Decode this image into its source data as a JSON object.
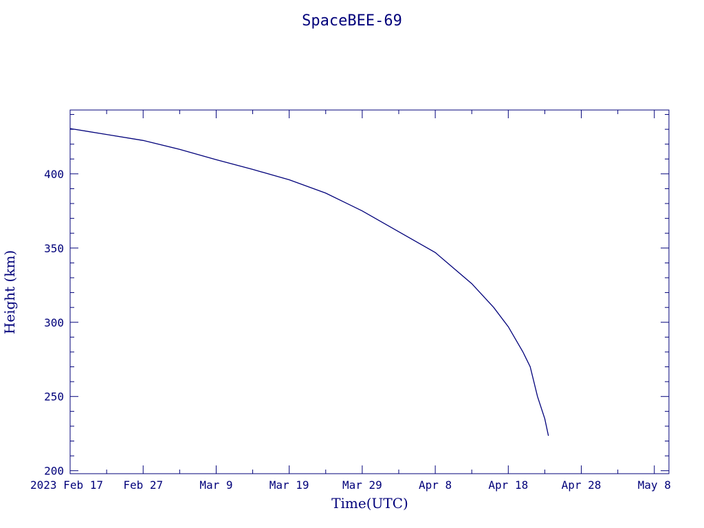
{
  "chart_data": {
    "type": "line",
    "title": "SpaceBEE-69",
    "xlabel": "Time(UTC)",
    "ylabel": "Height (km)",
    "x_axis": "date",
    "xlim": [
      "2023-02-17",
      "2023-05-10"
    ],
    "ylim": [
      198,
      443
    ],
    "grid": false,
    "x_ticks": [
      {
        "date": "2023-02-17",
        "label": "2023 Feb 17"
      },
      {
        "date": "2023-02-27",
        "label": "Feb 27"
      },
      {
        "date": "2023-03-09",
        "label": "Mar  9"
      },
      {
        "date": "2023-03-19",
        "label": "Mar 19"
      },
      {
        "date": "2023-03-29",
        "label": "Mar 29"
      },
      {
        "date": "2023-04-08",
        "label": "Apr  8"
      },
      {
        "date": "2023-04-18",
        "label": "Apr 18"
      },
      {
        "date": "2023-04-28",
        "label": "Apr 28"
      },
      {
        "date": "2023-05-08",
        "label": "May  8"
      }
    ],
    "y_ticks": [
      200,
      250,
      300,
      350,
      400
    ],
    "series": [
      {
        "color": "#00007a",
        "points": [
          {
            "x": "2023-02-17",
            "y": 430.5
          },
          {
            "x": "2023-02-22",
            "y": 426.5
          },
          {
            "x": "2023-02-27",
            "y": 422.5
          },
          {
            "x": "2023-03-04",
            "y": 416.5
          },
          {
            "x": "2023-03-09",
            "y": 409.5
          },
          {
            "x": "2023-03-14",
            "y": 403
          },
          {
            "x": "2023-03-19",
            "y": 396
          },
          {
            "x": "2023-03-24",
            "y": 387
          },
          {
            "x": "2023-03-29",
            "y": 375
          },
          {
            "x": "2023-04-03",
            "y": 361
          },
          {
            "x": "2023-04-08",
            "y": 347
          },
          {
            "x": "2023-04-13",
            "y": 326
          },
          {
            "x": "2023-04-16",
            "y": 310
          },
          {
            "x": "2023-04-18",
            "y": 297
          },
          {
            "x": "2023-04-20",
            "y": 280
          },
          {
            "x": "2023-04-21",
            "y": 270
          },
          {
            "x": "2023-04-22",
            "y": 250
          },
          {
            "x": "2023-04-23",
            "y": 235
          },
          {
            "x": "2023-04-23T12:00",
            "y": 223.5
          }
        ]
      }
    ]
  }
}
